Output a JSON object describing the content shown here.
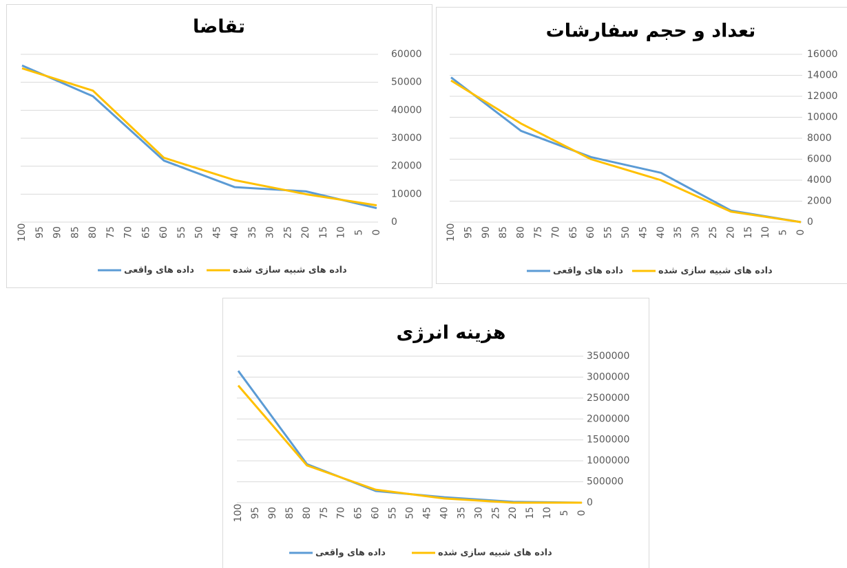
{
  "chart_data": [
    {
      "type": "line",
      "title": "تقاضا",
      "x": [
        100,
        80,
        60,
        40,
        20,
        0
      ],
      "xlim": [
        100,
        0
      ],
      "xticks": [
        100,
        95,
        90,
        85,
        80,
        75,
        70,
        65,
        60,
        55,
        50,
        45,
        40,
        35,
        30,
        25,
        20,
        15,
        10,
        5,
        0
      ],
      "ylim": [
        0,
        60000
      ],
      "yticks": [
        0,
        10000,
        20000,
        30000,
        40000,
        50000,
        60000
      ],
      "grid": true,
      "series": [
        {
          "name": "داده های واقعی",
          "color": "#5b9bd5",
          "values": [
            56000,
            45000,
            22000,
            12500,
            11000,
            5000
          ]
        },
        {
          "name": "داده های شبیه سازی شده",
          "color": "#ffc000",
          "values": [
            55000,
            47000,
            23000,
            15000,
            10000,
            6000
          ]
        }
      ]
    },
    {
      "type": "line",
      "title": "تعداد و حجم سفارشات",
      "x": [
        100,
        80,
        60,
        40,
        20,
        0
      ],
      "xlim": [
        100,
        0
      ],
      "xticks": [
        100,
        95,
        90,
        85,
        80,
        75,
        70,
        65,
        60,
        55,
        50,
        45,
        40,
        35,
        30,
        25,
        20,
        15,
        10,
        5,
        0
      ],
      "ylim": [
        0,
        16000
      ],
      "yticks": [
        0,
        2000,
        4000,
        6000,
        8000,
        10000,
        12000,
        14000,
        16000
      ],
      "grid": true,
      "series": [
        {
          "name": "داده های واقعی",
          "color": "#5b9bd5",
          "values": [
            13800,
            8700,
            6200,
            4700,
            1100,
            0
          ]
        },
        {
          "name": "داده های شبیه سازی شده",
          "color": "#ffc000",
          "values": [
            13500,
            9400,
            6000,
            4000,
            1000,
            0
          ]
        }
      ]
    },
    {
      "type": "line",
      "title": "هزینه انرژی",
      "x": [
        100,
        80,
        60,
        40,
        20,
        0
      ],
      "xlim": [
        100,
        0
      ],
      "xticks": [
        100,
        95,
        90,
        85,
        80,
        75,
        70,
        65,
        60,
        55,
        50,
        45,
        40,
        35,
        30,
        25,
        20,
        15,
        10,
        5,
        0
      ],
      "ylim": [
        0,
        3500000
      ],
      "yticks": [
        0,
        500000,
        1000000,
        1500000,
        2000000,
        2500000,
        3000000,
        3500000
      ],
      "grid": true,
      "series": [
        {
          "name": "داده های واقعی",
          "color": "#5b9bd5",
          "values": [
            3150000,
            920000,
            280000,
            130000,
            20000,
            0
          ]
        },
        {
          "name": "داده های شبیه سازی شده",
          "color": "#ffc000",
          "values": [
            2800000,
            890000,
            310000,
            100000,
            0,
            0
          ]
        }
      ]
    }
  ]
}
